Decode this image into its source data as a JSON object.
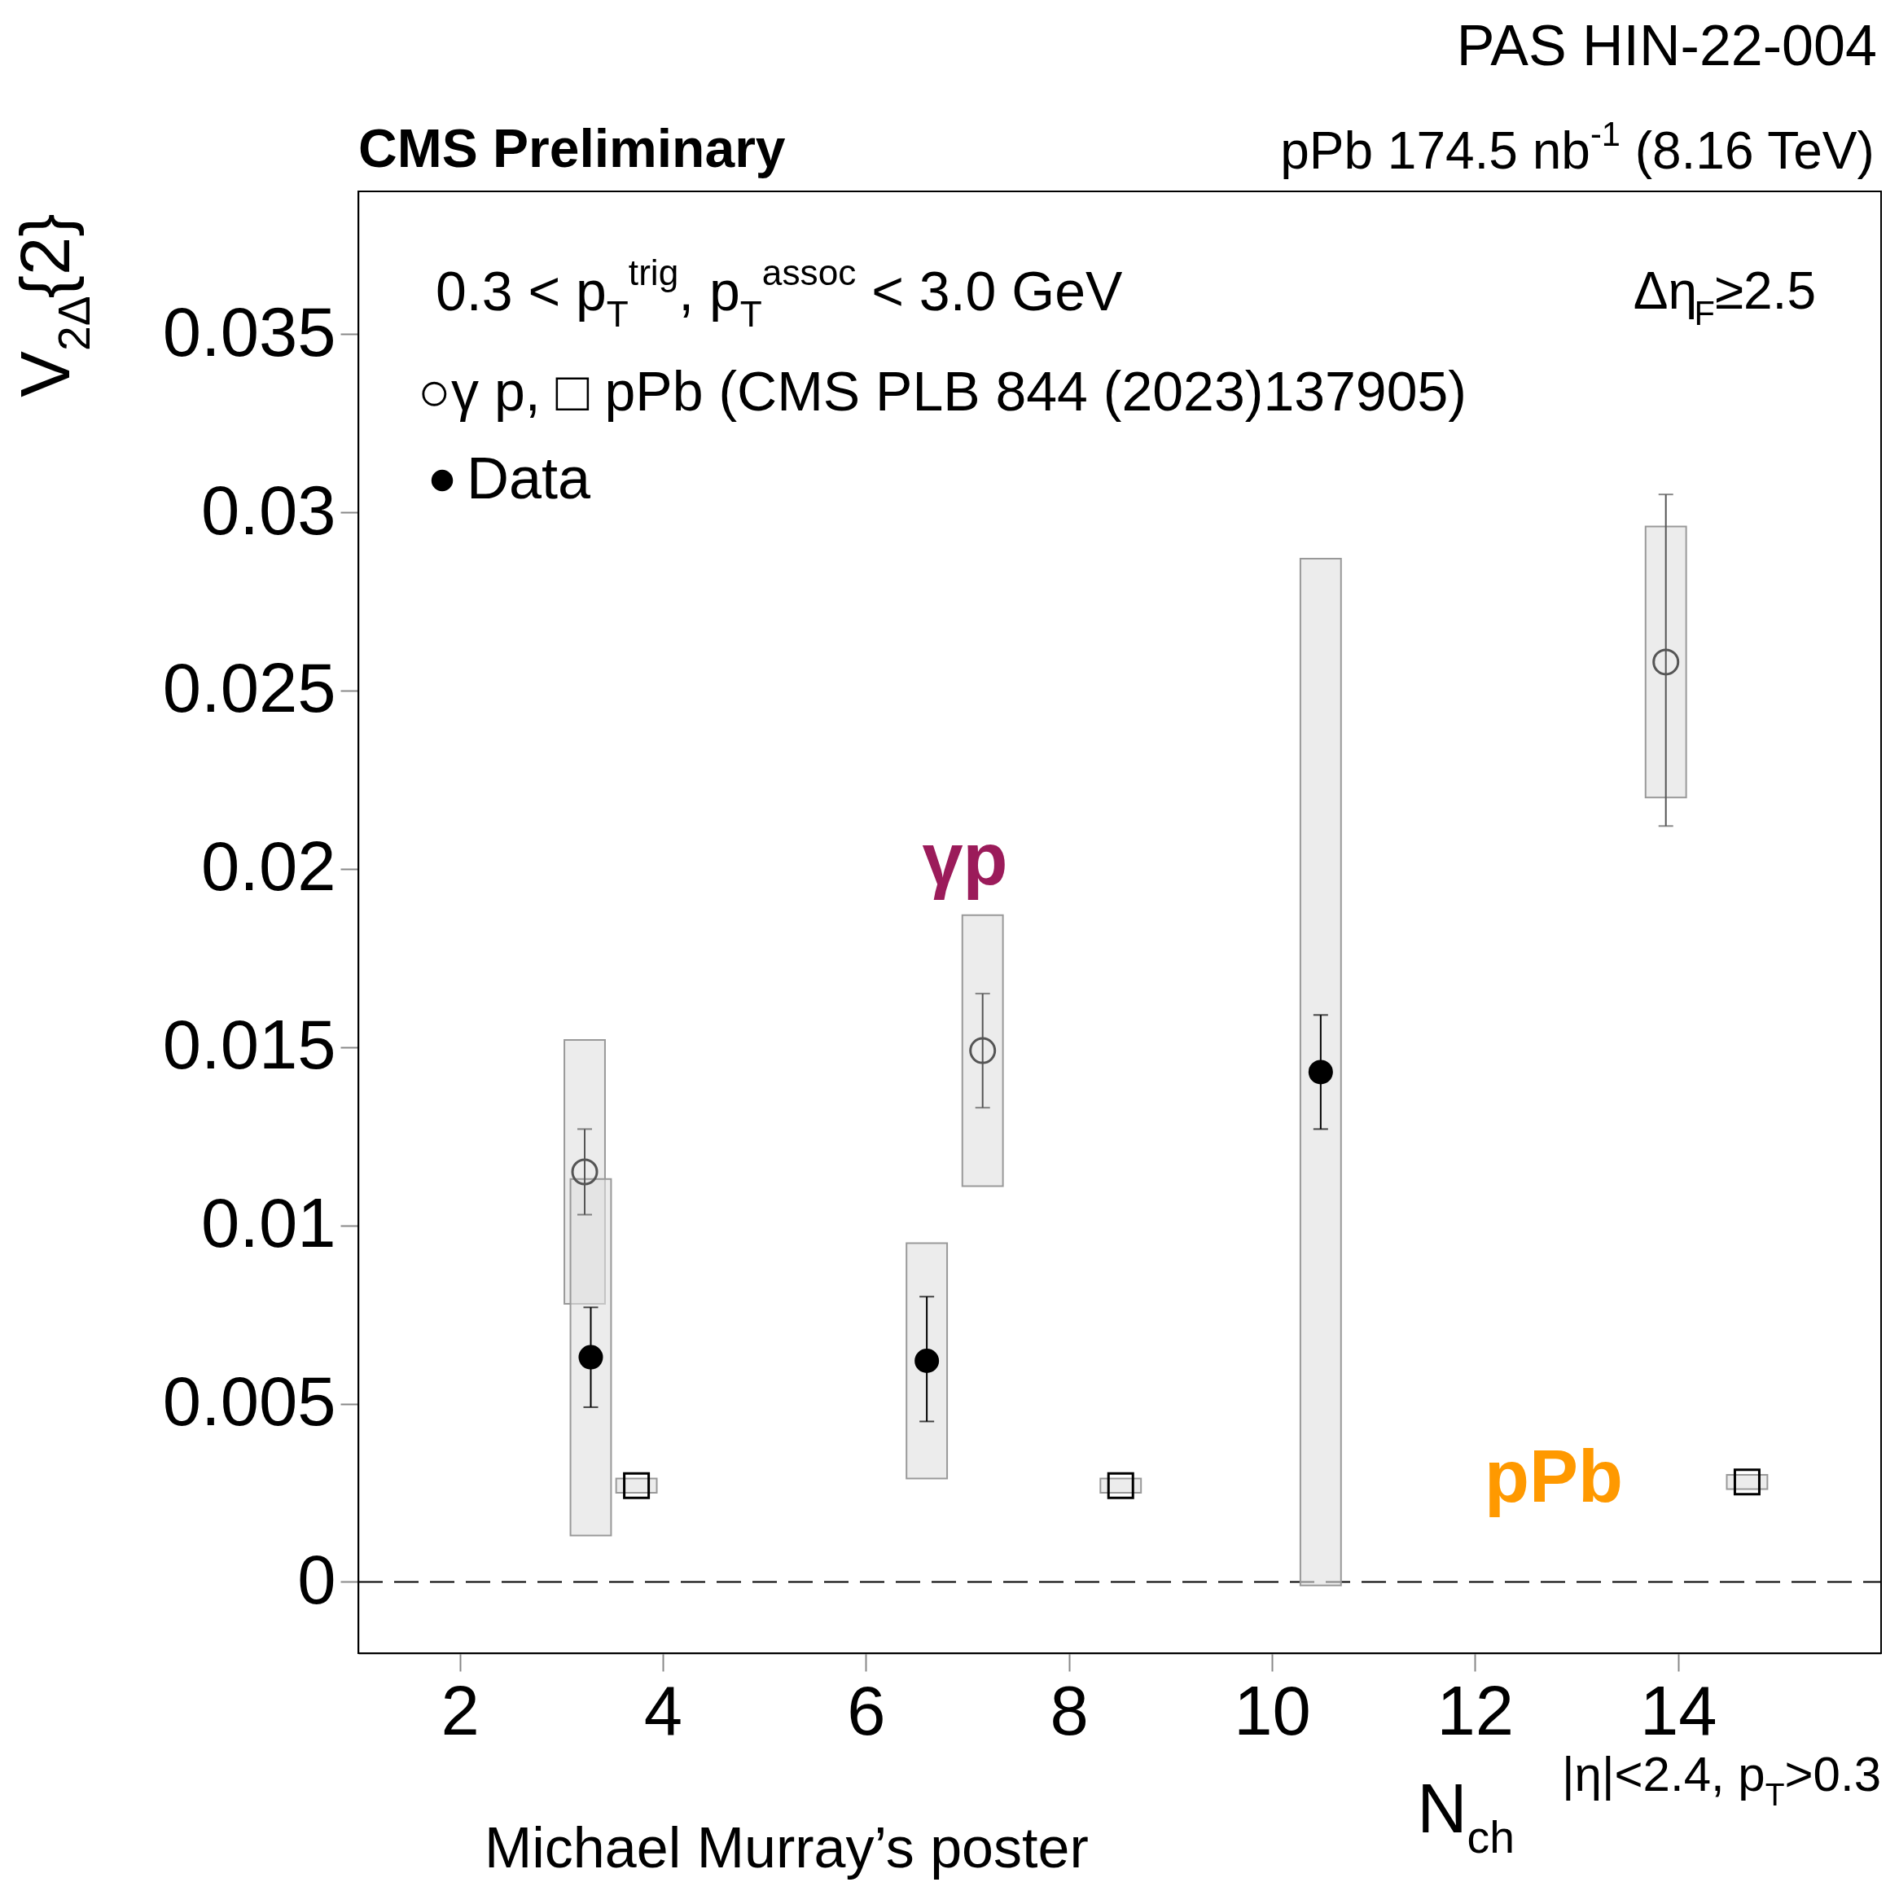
{
  "chart_data": {
    "type": "scatter",
    "title": "CMS Preliminary",
    "subtitle": "pPb 174.5 nb$^{-1}$ (8.16 TeV)",
    "xlabel": "N$_{ch}$",
    "ylabel": "V$_{2Δ}${2}",
    "xlim": [
      1,
      16
    ],
    "ylim": [
      -0.002,
      0.039
    ],
    "xticks": [
      2,
      4,
      6,
      8,
      10,
      12,
      14
    ],
    "yticks": [
      0,
      0.005,
      0.01,
      0.015,
      0.02,
      0.025,
      0.03,
      0.035
    ],
    "grid": false,
    "legend": "top left",
    "ref_lines": [
      {
        "axis": "y",
        "value": 0,
        "line_style": "dashed",
        "color": "#000000"
      }
    ],
    "series": [
      {
        "type": "bar",
        "color": "#e0e0e0",
        "x": [
          3.23,
          3.29,
          3.74,
          6.6,
          7.15,
          8.51,
          10.48,
          13.88,
          14.68
        ],
        "base": [
          0.0078,
          0.0013,
          0.0025,
          0.0029,
          0.0111,
          0.0025,
          -0.0001,
          0.022,
          0.0026
        ],
        "values": [
          0.0074,
          0.01,
          0.0004,
          0.0066,
          0.0076,
          0.0004,
          0.0288,
          0.0076,
          0.0004
        ]
      },
      {
        "name": "Data",
        "marker": "circle",
        "color": "#000000",
        "x": [
          3.29,
          6.6,
          10.48
        ],
        "values": [
          0.0063,
          0.0062,
          0.0143
        ],
        "errors": [
          [
            0.0049,
            0.0077
          ],
          [
            0.0045,
            0.008
          ],
          [
            0.0127,
            0.0159
          ]
        ]
      },
      {
        "marker": "circle",
        "color": "#555555",
        "x": [
          3.23,
          7.15,
          13.88
        ],
        "values": [
          0.0115,
          0.0149,
          0.0258
        ],
        "errors": [
          [
            0.0103,
            0.0127
          ],
          [
            0.0133,
            0.0165
          ],
          [
            0.0212,
            0.0305
          ]
        ]
      },
      {
        "marker": "square",
        "color": "#000000",
        "x": [
          3.74,
          8.51,
          14.68
        ],
        "values": [
          0.0027,
          0.0027,
          0.0028
        ]
      }
    ],
    "annotations": [
      "PAS HIN-22-004",
      "0.3 < p$_{T}$$^{trig}$, p$_{T}$$^{assoc}$ < 3.0 GeV",
      "Δη$_{F}$≥2.5",
      "○γ p, □ pPb (CMS PLB 844 (2023)137905)",
      "|η|<2.4, p$_{T}$>0.3",
      "Michael Murray’s poster",
      "γp",
      "pPb"
    ]
  }
}
